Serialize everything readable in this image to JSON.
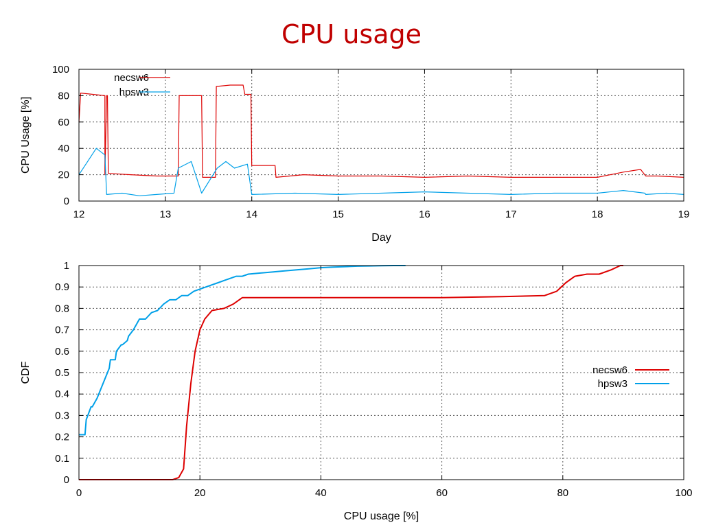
{
  "slide": {
    "title": "CPU usage"
  },
  "colors": {
    "necsw6": "#dd0000",
    "hpsw3": "#00a0e8",
    "title": "#c00000"
  },
  "chart_data": [
    {
      "type": "line",
      "xlabel": "Day",
      "ylabel": "CPU Usage [%]",
      "xlim": [
        12,
        19
      ],
      "ylim": [
        0,
        100
      ],
      "xticks": [
        12,
        13,
        14,
        15,
        16,
        17,
        18,
        19
      ],
      "yticks": [
        0,
        20,
        40,
        60,
        80,
        100
      ],
      "grid": true,
      "legend_position": "top-left",
      "series": [
        {
          "name": "necsw6",
          "x": [
            12.0,
            12.02,
            12.3,
            12.3,
            12.32,
            12.33,
            12.34,
            12.6,
            12.9,
            13.1,
            13.15,
            13.16,
            13.42,
            13.43,
            13.58,
            13.59,
            13.75,
            13.9,
            13.92,
            13.99,
            14.0,
            14.27,
            14.28,
            14.6,
            15.0,
            15.5,
            16.0,
            16.5,
            17.0,
            17.5,
            18.0,
            18.3,
            18.5,
            18.56,
            18.7,
            19.0
          ],
          "y": [
            60,
            82,
            80,
            20,
            80,
            80,
            21,
            20,
            19,
            19,
            19,
            80,
            80,
            18,
            18,
            87,
            88,
            88,
            81,
            81,
            27,
            27,
            18,
            20,
            19,
            19,
            18,
            19,
            18,
            18,
            18,
            22,
            24,
            19,
            19,
            18
          ]
        },
        {
          "name": "hpsw3",
          "x": [
            12.0,
            12.1,
            12.2,
            12.3,
            12.32,
            12.5,
            12.7,
            12.9,
            13.1,
            13.15,
            13.3,
            13.42,
            13.6,
            13.7,
            13.8,
            13.95,
            14.0,
            14.5,
            15.0,
            15.5,
            16.0,
            16.5,
            17.0,
            17.5,
            18.0,
            18.3,
            18.55,
            18.56,
            18.8,
            19.0
          ],
          "y": [
            20,
            30,
            40,
            35,
            5,
            6,
            4,
            5,
            6,
            25,
            30,
            6,
            25,
            30,
            25,
            28,
            5,
            6,
            5,
            6,
            7,
            6,
            5,
            6,
            6,
            8,
            6,
            5,
            6,
            5
          ]
        }
      ]
    },
    {
      "type": "line",
      "xlabel": "CPU usage [%]",
      "ylabel": "CDF",
      "xlim": [
        0,
        100
      ],
      "ylim": [
        0,
        1
      ],
      "xticks": [
        0,
        20,
        40,
        60,
        80,
        100
      ],
      "yticks": [
        0,
        0.1,
        0.2,
        0.3,
        0.4,
        0.5,
        0.6,
        0.7,
        0.8,
        0.9,
        1
      ],
      "grid": true,
      "legend_position": "right",
      "series": [
        {
          "name": "necsw6",
          "x": [
            0,
            15.5,
            16.5,
            17.3,
            17.8,
            18.5,
            19.2,
            20.0,
            20.8,
            22.0,
            24.0,
            25.5,
            27.0,
            40.0,
            60.0,
            70.0,
            77.0,
            79.0,
            80.5,
            82.0,
            84.0,
            86.0,
            88.0,
            89.5,
            90.0
          ],
          "y": [
            0,
            0,
            0.01,
            0.05,
            0.25,
            0.45,
            0.6,
            0.7,
            0.75,
            0.79,
            0.8,
            0.82,
            0.85,
            0.85,
            0.85,
            0.855,
            0.86,
            0.88,
            0.92,
            0.95,
            0.96,
            0.96,
            0.98,
            1.0,
            1.0
          ]
        },
        {
          "name": "hpsw3",
          "x": [
            0,
            1,
            1.2,
            2,
            2.2,
            3,
            4,
            5,
            5.2,
            6,
            6.2,
            7,
            7.2,
            8,
            8.2,
            9,
            10,
            11,
            12,
            13,
            14,
            15,
            16,
            17,
            18,
            19,
            20,
            21,
            22,
            23,
            24,
            25,
            26,
            27,
            28,
            30,
            32,
            34,
            36,
            38,
            40,
            42,
            44,
            46,
            48,
            50,
            52,
            54
          ],
          "y": [
            0.21,
            0.21,
            0.28,
            0.34,
            0.34,
            0.38,
            0.45,
            0.52,
            0.56,
            0.56,
            0.6,
            0.63,
            0.63,
            0.65,
            0.67,
            0.7,
            0.75,
            0.75,
            0.78,
            0.79,
            0.82,
            0.84,
            0.84,
            0.86,
            0.86,
            0.88,
            0.89,
            0.9,
            0.91,
            0.92,
            0.93,
            0.94,
            0.95,
            0.95,
            0.96,
            0.965,
            0.97,
            0.975,
            0.98,
            0.985,
            0.99,
            0.993,
            0.995,
            0.997,
            0.998,
            0.999,
            1.0,
            1.0
          ]
        }
      ]
    }
  ]
}
